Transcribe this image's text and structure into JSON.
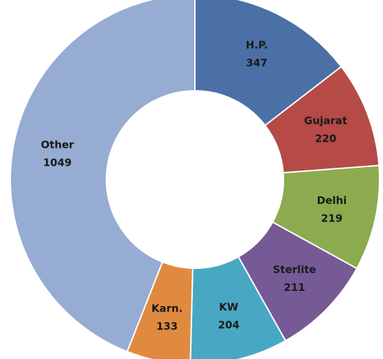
{
  "chart_data": {
    "type": "donut",
    "categories": [
      "H.P.",
      "Gujarat",
      "Delhi",
      "Sterlite",
      "KW",
      "Karn.",
      "Other"
    ],
    "values": [
      347,
      220,
      219,
      211,
      204,
      133,
      1049
    ],
    "colors": [
      "#4a70a6",
      "#b54a47",
      "#8cab4f",
      "#755a96",
      "#48a8c3",
      "#e08a3f",
      "#97acd3"
    ]
  }
}
